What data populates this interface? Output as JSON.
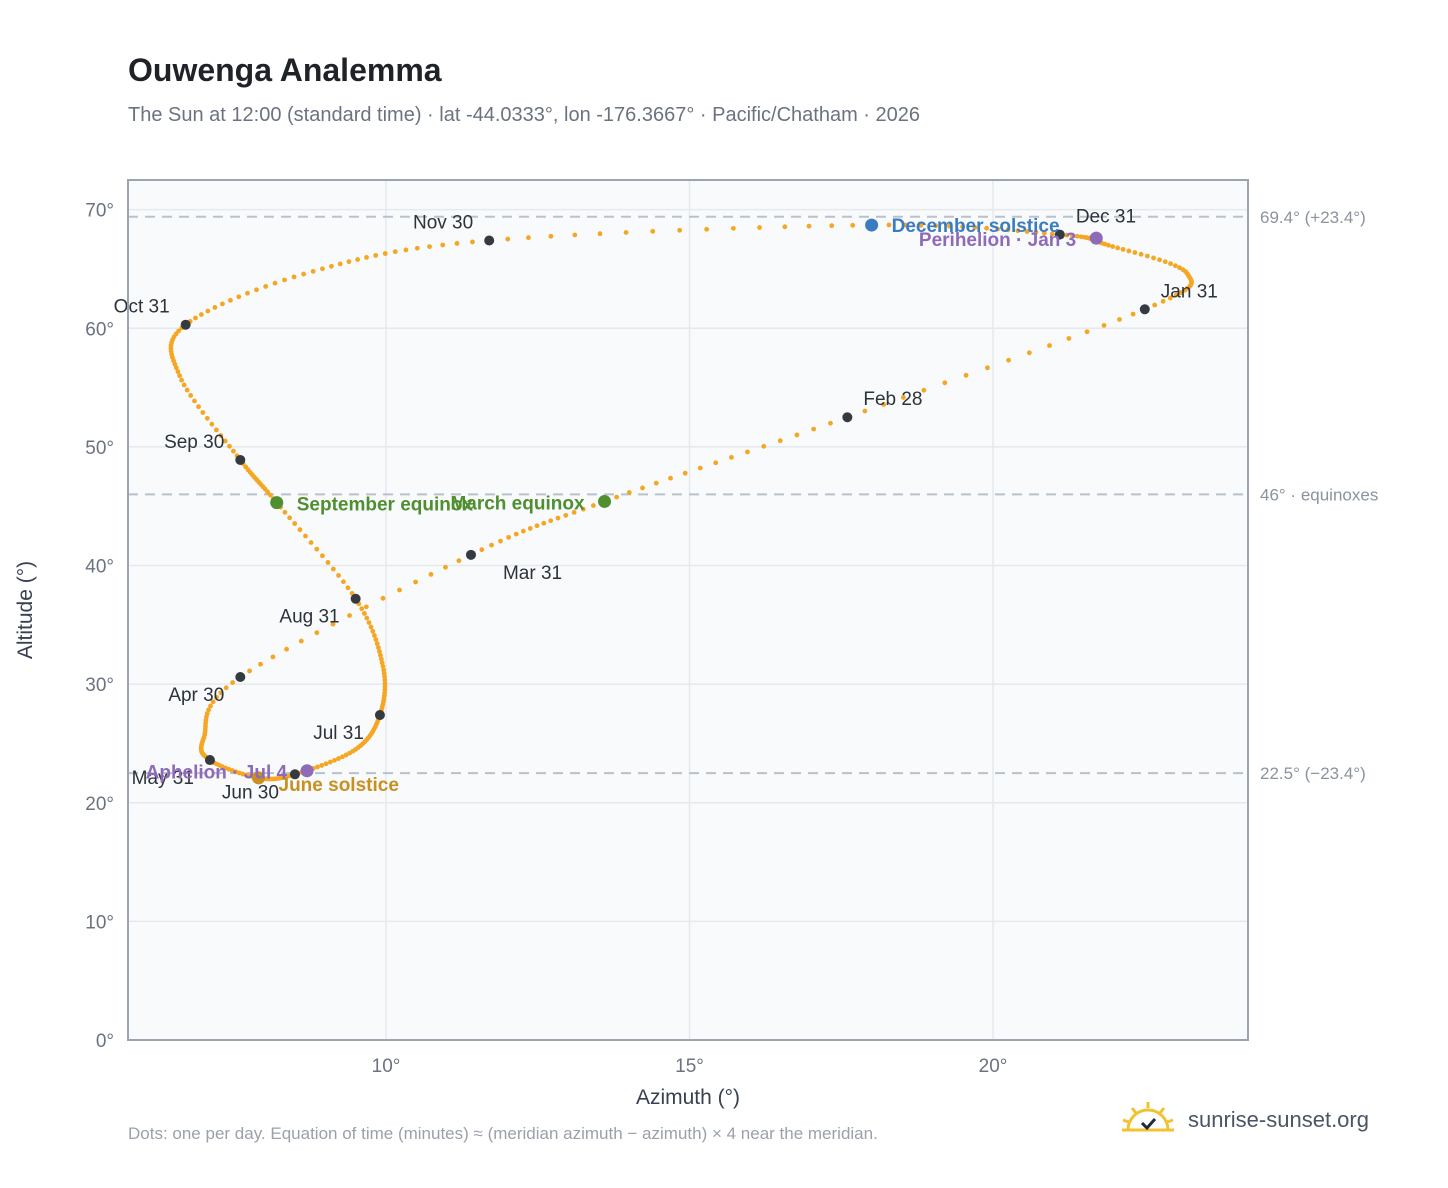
{
  "title": "Ouwenga Analemma",
  "subtitle": "The Sun at 12:00 (standard time) · lat -44.0333°, lon -176.3667° · Pacific/Chatham · 2026",
  "footnote": "Dots: one per day. Equation of time (minutes) ≈ (meridian azimuth − azimuth) × 4 near the meridian.",
  "brand": {
    "name": "sunrise-sunset.org",
    "icon": "sun-logo-icon"
  },
  "colors": {
    "path": "#f5a623",
    "month_dot": "#343a40",
    "december_solstice": "#3b7bbf",
    "june_solstice": "#c8901e",
    "equinox": "#4f8f2f",
    "apsis": "#8e6bb8",
    "reference_line": "#b8c2cc",
    "plot_bg": "#f8fafc",
    "grid": "#e5e9ee",
    "frame": "#9aa5b1"
  },
  "chart_data": {
    "type": "scatter",
    "xlabel": "Azimuth (°)",
    "ylabel": "Altitude (°)",
    "xlim": [
      5.75,
      24.2
    ],
    "ylim": [
      0,
      72.5
    ],
    "x_ticks": [
      {
        "value": 10,
        "label": "10°"
      },
      {
        "value": 15,
        "label": "15°"
      },
      {
        "value": 20,
        "label": "20°"
      }
    ],
    "y_ticks": [
      {
        "value": 0,
        "label": "0°"
      },
      {
        "value": 10,
        "label": "10°"
      },
      {
        "value": 20,
        "label": "20°"
      },
      {
        "value": 30,
        "label": "30°"
      },
      {
        "value": 40,
        "label": "40°"
      },
      {
        "value": 50,
        "label": "50°"
      },
      {
        "value": 60,
        "label": "60°"
      },
      {
        "value": 70,
        "label": "70°"
      }
    ],
    "grid": true,
    "reference_lines": [
      {
        "y": 69.4,
        "label": "69.4° (+23.4°)"
      },
      {
        "y": 46.0,
        "label": "46° · equinoxes"
      },
      {
        "y": 22.5,
        "label": "22.5° (−23.4°)"
      }
    ],
    "path_anchors": [
      {
        "date": "Jan 1",
        "az": 21.9,
        "alt": 67.0
      },
      {
        "date": "Jan 16",
        "az": 23.2,
        "alt": 64.6
      },
      {
        "date": "Jan 31",
        "az": 22.5,
        "alt": 61.6
      },
      {
        "date": "Feb 28",
        "az": 17.6,
        "alt": 52.5
      },
      {
        "date": "Mar 20",
        "az": 13.6,
        "alt": 45.4
      },
      {
        "date": "Mar 31",
        "az": 11.4,
        "alt": 40.9
      },
      {
        "date": "Apr 30",
        "az": 7.6,
        "alt": 30.6
      },
      {
        "date": "May 20",
        "az": 7.0,
        "alt": 25.5
      },
      {
        "date": "May 31",
        "az": 7.1,
        "alt": 23.6
      },
      {
        "date": "Jun 21",
        "az": 7.9,
        "alt": 22.1
      },
      {
        "date": "Jun 30",
        "az": 8.5,
        "alt": 22.4
      },
      {
        "date": "Jul 15",
        "az": 9.5,
        "alt": 24.5
      },
      {
        "date": "Jul 31",
        "az": 9.9,
        "alt": 27.4
      },
      {
        "date": "Aug 15",
        "az": 9.95,
        "alt": 31.5
      },
      {
        "date": "Aug 31",
        "az": 9.5,
        "alt": 37.2
      },
      {
        "date": "Sep 23",
        "az": 8.2,
        "alt": 45.3
      },
      {
        "date": "Sep 30",
        "az": 7.6,
        "alt": 48.9
      },
      {
        "date": "Oct 15",
        "az": 6.6,
        "alt": 56.0
      },
      {
        "date": "Oct 31",
        "az": 6.7,
        "alt": 60.3
      },
      {
        "date": "Nov 15",
        "az": 8.8,
        "alt": 64.8
      },
      {
        "date": "Nov 30",
        "az": 11.7,
        "alt": 67.4
      },
      {
        "date": "Dec 21",
        "az": 18.0,
        "alt": 68.7
      },
      {
        "date": "Dec 31",
        "az": 21.1,
        "alt": 67.9
      }
    ],
    "month_ends": [
      {
        "label": "Jan 31",
        "az": 22.5,
        "alt": 61.6
      },
      {
        "label": "Feb 28",
        "az": 17.6,
        "alt": 52.5
      },
      {
        "label": "Mar 31",
        "az": 11.4,
        "alt": 40.9
      },
      {
        "label": "Apr 30",
        "az": 7.6,
        "alt": 30.6
      },
      {
        "label": "May 31",
        "az": 7.1,
        "alt": 23.6
      },
      {
        "label": "Jun 30",
        "az": 8.5,
        "alt": 22.4
      },
      {
        "label": "Jul 31",
        "az": 9.9,
        "alt": 27.4
      },
      {
        "label": "Aug 31",
        "az": 9.5,
        "alt": 37.2
      },
      {
        "label": "Sep 30",
        "az": 7.6,
        "alt": 48.9
      },
      {
        "label": "Oct 31",
        "az": 6.7,
        "alt": 60.3
      },
      {
        "label": "Nov 30",
        "az": 11.7,
        "alt": 67.4
      },
      {
        "label": "Dec 31",
        "az": 21.1,
        "alt": 67.9
      }
    ],
    "events": [
      {
        "label": "December solstice",
        "az": 18.0,
        "alt": 68.7,
        "kind": "december_solstice"
      },
      {
        "label": "Perihelion · Jan 3",
        "az": 21.7,
        "alt": 67.6,
        "kind": "apsis"
      },
      {
        "label": "March equinox",
        "az": 13.6,
        "alt": 45.4,
        "kind": "equinox"
      },
      {
        "label": "September equinox",
        "az": 8.2,
        "alt": 45.3,
        "kind": "equinox"
      },
      {
        "label": "June solstice",
        "az": 7.9,
        "alt": 22.1,
        "kind": "june_solstice"
      },
      {
        "label": "Aphelion · Jul 4",
        "az": 8.7,
        "alt": 22.7,
        "kind": "apsis"
      }
    ]
  }
}
